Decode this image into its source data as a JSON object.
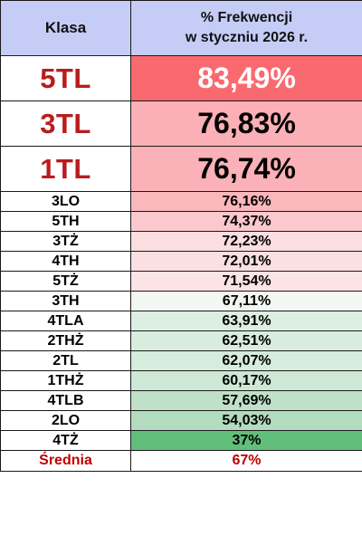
{
  "table": {
    "header": {
      "class_label": "Klasa",
      "pct_line1": "% Frekwencji",
      "pct_line2": "w styczniu 2026 r."
    },
    "rows": [
      {
        "klasa": "5TL",
        "frekwencja": "83,49%",
        "color": "#f96a70"
      },
      {
        "klasa": "3TL",
        "frekwencja": "76,83%",
        "color": "#fab0b6"
      },
      {
        "klasa": "1TL",
        "frekwencja": "76,74%",
        "color": "#fab1b7"
      },
      {
        "klasa": "3LO",
        "frekwencja": "76,16%",
        "color": "#fab7bc"
      },
      {
        "klasa": "5TH",
        "frekwencja": "74,37%",
        "color": "#fbc8cd"
      },
      {
        "klasa": "3TŻ",
        "frekwencja": "72,23%",
        "color": "#fcdde0"
      },
      {
        "klasa": "4TH",
        "frekwencja": "72,01%",
        "color": "#fcdfe2"
      },
      {
        "klasa": "5TŻ",
        "frekwencja": "71,54%",
        "color": "#fce3e6"
      },
      {
        "klasa": "3TH",
        "frekwencja": "67,11%",
        "color": "#f2f7f4"
      },
      {
        "klasa": "4TLA",
        "frekwencja": "63,91%",
        "color": "#dcefe2"
      },
      {
        "klasa": "2THŻ",
        "frekwencja": "62,51%",
        "color": "#d9eddf"
      },
      {
        "klasa": "2TL",
        "frekwencja": "62,07%",
        "color": "#d6ecdd"
      },
      {
        "klasa": "1THŻ",
        "frekwencja": "60,17%",
        "color": "#cde8d5"
      },
      {
        "klasa": "4TLB",
        "frekwencja": "57,69%",
        "color": "#bfe1c8"
      },
      {
        "klasa": "2LO",
        "frekwencja": "54,03%",
        "color": "#b3dbbd"
      },
      {
        "klasa": "4TŻ",
        "frekwencja": "37%",
        "color": "#62bf7b"
      }
    ],
    "summary": {
      "label": "Średnia",
      "value": "67%"
    }
  }
}
